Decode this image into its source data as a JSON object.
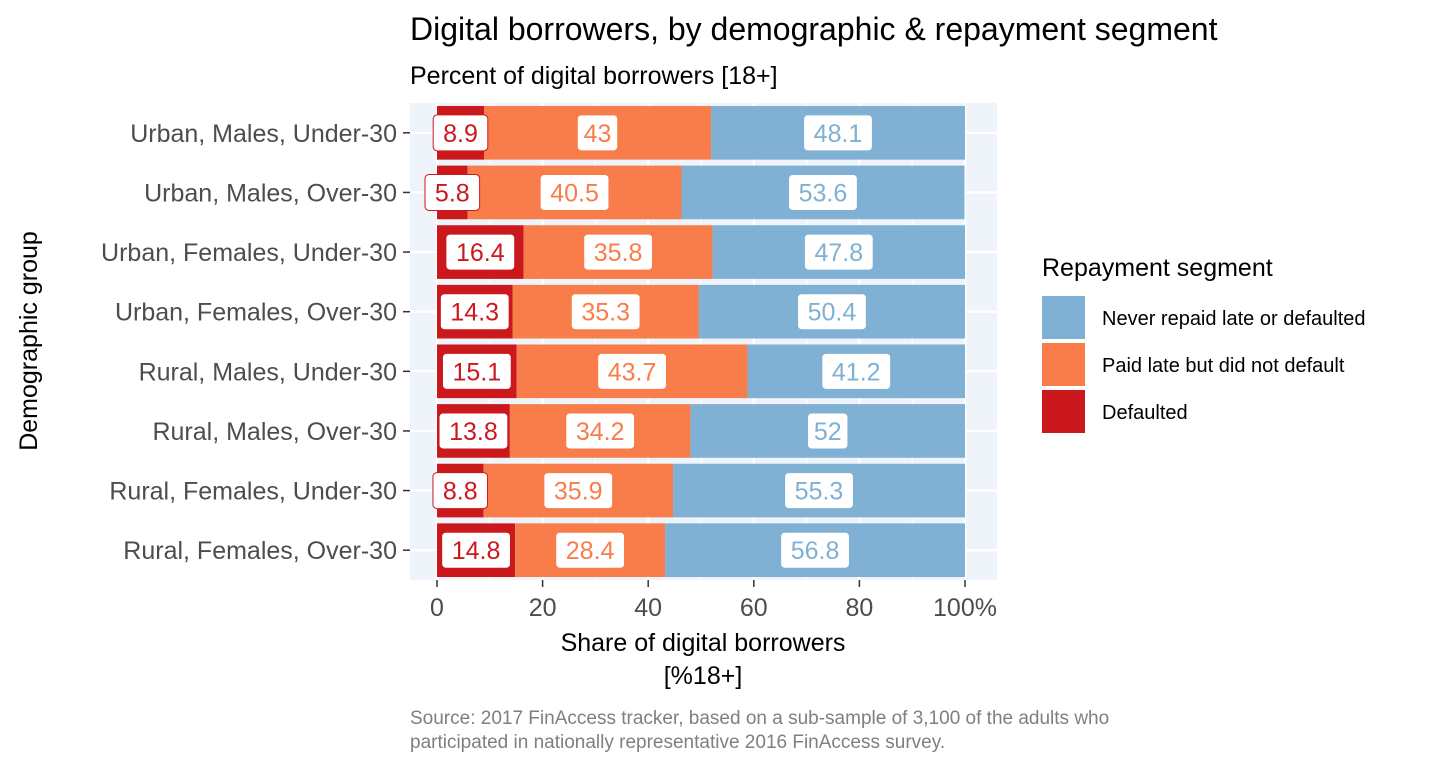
{
  "chart_data": {
    "type": "bar",
    "orientation": "horizontal",
    "stacked": true,
    "title": "Digital borrowers, by demographic & repayment segment",
    "subtitle": "Percent of digital borrowers [18+]",
    "ylabel": "Demographic group",
    "xlabel_lines": [
      "Share of digital borrowers",
      "[%18+]"
    ],
    "caption_lines": [
      "Source: 2017 FinAccess tracker, based on a sub-sample of 3,100 of the adults who",
      "participated in nationally representative 2016 FinAccess survey."
    ],
    "xlim": [
      0,
      100
    ],
    "x_ticks": [
      0,
      20,
      40,
      60,
      80,
      100
    ],
    "x_tick_labels": [
      "0",
      "20",
      "40",
      "60",
      "80",
      "100%"
    ],
    "grid": true,
    "panel_background": "#eff4fb",
    "legend_position": "right",
    "legend_title": "Repayment segment",
    "categories": [
      "Urban, Males, Under-30",
      "Urban, Males, Over-30",
      "Urban, Females, Under-30",
      "Urban, Females, Over-30",
      "Rural, Males, Under-30",
      "Rural, Males, Over-30",
      "Rural, Females, Under-30",
      "Rural, Females, Over-30"
    ],
    "series": [
      {
        "name": "Defaulted",
        "color": "#cb181d",
        "values": [
          8.9,
          5.8,
          16.4,
          14.3,
          15.1,
          13.8,
          8.8,
          14.8
        ]
      },
      {
        "name": "Paid late but did not default",
        "color": "#f87d4a",
        "values": [
          43,
          40.5,
          35.8,
          35.3,
          43.7,
          34.2,
          35.9,
          28.4
        ]
      },
      {
        "name": "Never repaid late or defaulted",
        "color": "#80b0d3",
        "values": [
          48.1,
          53.6,
          47.8,
          50.4,
          41.2,
          52,
          55.3,
          56.8
        ]
      }
    ],
    "legend_order": [
      "Never repaid late or defaulted",
      "Paid late but did not default",
      "Defaulted"
    ]
  }
}
